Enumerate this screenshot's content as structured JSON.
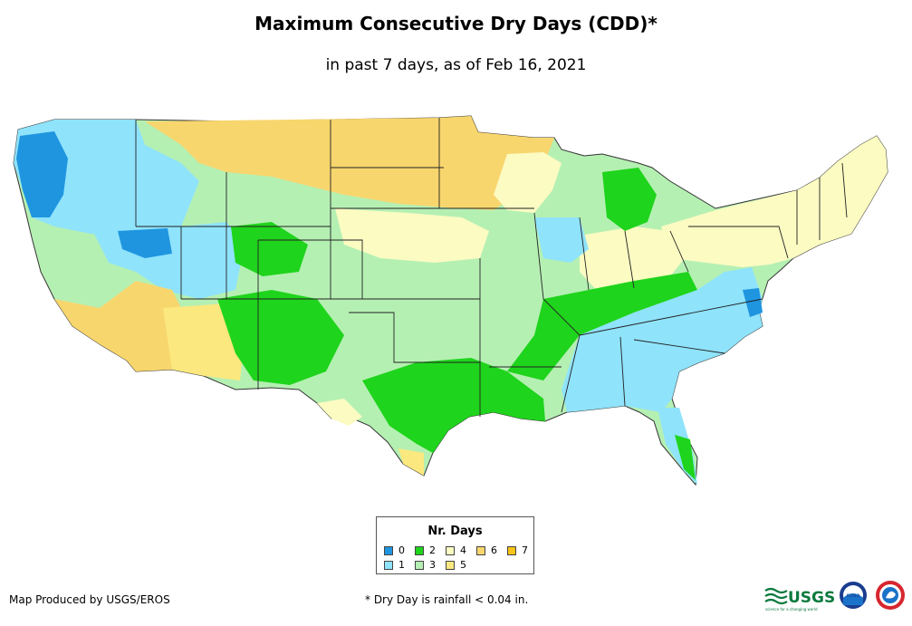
{
  "title": "Maximum Consecutive Dry Days (CDD)*",
  "subtitle": "in past 7 days, as of Feb 16, 2021",
  "legend": {
    "title": "Nr. Days",
    "items": [
      {
        "label": "0",
        "color": "#1f95e0"
      },
      {
        "label": "1",
        "color": "#8fe3fb"
      },
      {
        "label": "2",
        "color": "#1fd41c"
      },
      {
        "label": "3",
        "color": "#b5f0b3"
      },
      {
        "label": "4",
        "color": "#fbfbc2"
      },
      {
        "label": "5",
        "color": "#fbe87f"
      },
      {
        "label": "6",
        "color": "#f8d66e"
      },
      {
        "label": "7",
        "color": "#f7c318"
      }
    ]
  },
  "footer": {
    "credit": "Map Produced by USGS/EROS",
    "note": "* Dry Day is rainfall < 0.04 in."
  },
  "logos": {
    "usgs": "USGS",
    "usgs_tagline": "science for a changing world",
    "noaa": "noaa"
  }
}
